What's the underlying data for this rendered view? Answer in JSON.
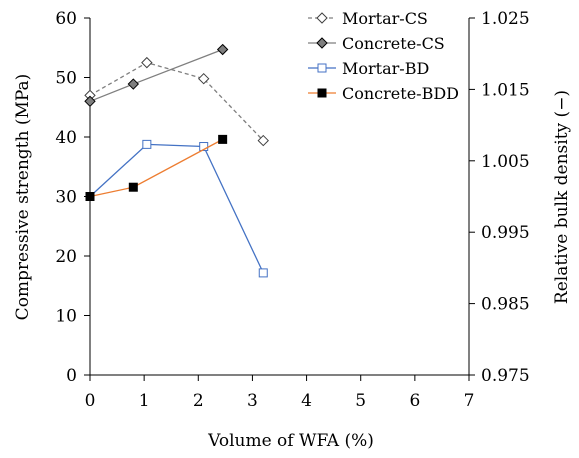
{
  "chart_data": {
    "type": "line",
    "title": "",
    "xlabel": "Volume of WFA (%)",
    "ylabel": "Compressive strength (MPa)",
    "y2label": "Relative bulk density (−)",
    "xlim": [
      0,
      7
    ],
    "ylim": [
      0,
      60
    ],
    "y2lim": [
      0.975,
      1.025
    ],
    "x_ticks": [
      "0",
      "1",
      "2",
      "3",
      "4",
      "5",
      "6",
      "7"
    ],
    "y_ticks": [
      "0",
      "10",
      "20",
      "30",
      "40",
      "50",
      "60"
    ],
    "y2_ticks": [
      "0.975",
      "0.985",
      "0.995",
      "1.005",
      "1.015",
      "1.025"
    ],
    "grid": false,
    "legend_position": "top-right",
    "series": [
      {
        "name": "Mortar-CS",
        "axis": "left",
        "line_color": "#7f7f7f",
        "line_style": "dashed",
        "marker": "diamond",
        "marker_fill": "#ffffff",
        "marker_stroke": "#404040",
        "x": [
          0,
          1.05,
          2.1,
          3.2
        ],
        "y": [
          47,
          52.5,
          49.8,
          39.4
        ]
      },
      {
        "name": "Concrete-CS",
        "axis": "left",
        "line_color": "#7f7f7f",
        "line_style": "solid",
        "marker": "diamond",
        "marker_fill": "#7f7f7f",
        "marker_stroke": "#000000",
        "x": [
          0,
          0.8,
          2.45
        ],
        "y": [
          46,
          48.9,
          54.7
        ]
      },
      {
        "name": "Mortar-BD",
        "axis": "right",
        "line_color": "#4472c4",
        "line_style": "solid",
        "marker": "square",
        "marker_fill": "#ffffff",
        "marker_stroke": "#4472c4",
        "x": [
          0,
          1.05,
          2.1,
          3.2
        ],
        "y": [
          1.0,
          1.0073,
          1.007,
          0.9893
        ]
      },
      {
        "name": "Concrete-BDD",
        "axis": "right",
        "line_color": "#ed7d31",
        "line_style": "solid",
        "marker": "square",
        "marker_fill": "#000000",
        "marker_stroke": "#000000",
        "x": [
          0,
          0.8,
          2.45
        ],
        "y": [
          1.0,
          1.0013,
          1.008
        ]
      }
    ]
  }
}
